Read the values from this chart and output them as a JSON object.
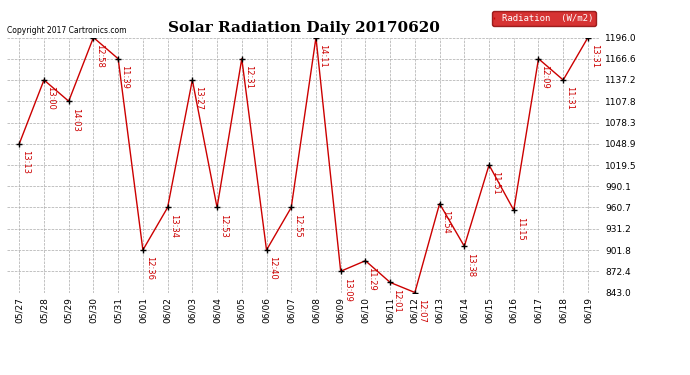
{
  "title": "Solar Radiation Daily 20170620",
  "copyright": "Copyright 2017 Cartronics.com",
  "legend_label": "Radiation  (W/m2)",
  "x_labels": [
    "05/27",
    "05/28",
    "05/29",
    "05/30",
    "05/31",
    "06/01",
    "06/02",
    "06/03",
    "06/04",
    "06/05",
    "06/06",
    "06/07",
    "06/08",
    "06/09",
    "06/10",
    "06/11",
    "06/12",
    "06/13",
    "06/14",
    "06/15",
    "06/16",
    "06/17",
    "06/18",
    "06/19"
  ],
  "y_values": [
    1048.9,
    1137.2,
    1107.8,
    1196.0,
    1166.6,
    901.8,
    960.7,
    1137.2,
    960.7,
    1166.6,
    901.8,
    960.7,
    1196.0,
    872.4,
    887.0,
    857.0,
    843.0,
    966.0,
    907.0,
    1019.5,
    957.0,
    1166.6,
    1137.2,
    1196.0
  ],
  "time_labels": [
    "13:13",
    "13:00",
    "14:03",
    "12:58",
    "11:39",
    "12:36",
    "13:34",
    "13:27",
    "12:53",
    "12:31",
    "12:40",
    "12:55",
    "14:11",
    "13:09",
    "11:29",
    "12:01",
    "12:07",
    "12:54",
    "13:38",
    "11:51",
    "11:15",
    "12:09",
    "11:31",
    "13:31"
  ],
  "ylim_min": 843.0,
  "ylim_max": 1196.0,
  "yticks": [
    843.0,
    872.4,
    901.8,
    931.2,
    960.7,
    990.1,
    1019.5,
    1048.9,
    1078.3,
    1107.8,
    1137.2,
    1166.6,
    1196.0
  ],
  "line_color": "#cc0000",
  "marker_color": "#000000",
  "bg_color": "#ffffff",
  "grid_color": "#aaaaaa",
  "title_fontsize": 11,
  "label_fontsize": 6,
  "tick_fontsize": 6.5,
  "copyright_fontsize": 5.5,
  "legend_fontsize": 6.5,
  "legend_bg": "#cc0000",
  "legend_fg": "#ffffff"
}
